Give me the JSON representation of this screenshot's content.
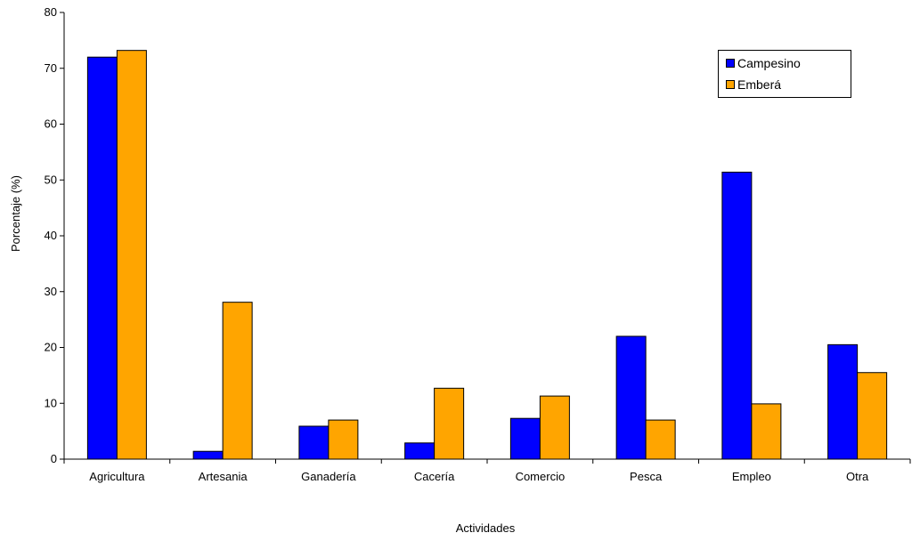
{
  "colors": {
    "campesino": "#0000ff",
    "embera": "#ffa500",
    "axis": "#000000"
  },
  "chart_data": {
    "type": "bar",
    "title": "",
    "xlabel": "Actividades",
    "ylabel": "Porcentaje (%)",
    "ylim": [
      0,
      80
    ],
    "yticks": [
      "0",
      "10",
      "20",
      "30",
      "40",
      "50",
      "60",
      "70",
      "80"
    ],
    "categories": [
      "Agricultura",
      "Artesania",
      "Ganadería",
      "Cacería",
      "Comercio",
      "Pesca",
      "Empleo",
      "Otra"
    ],
    "series": [
      {
        "name": "Campesino",
        "values": [
          72.0,
          1.4,
          5.9,
          2.9,
          7.3,
          22.0,
          51.4,
          20.5
        ]
      },
      {
        "name": "Emberá",
        "values": [
          73.2,
          28.1,
          7.0,
          12.7,
          11.3,
          7.0,
          9.9,
          15.5
        ]
      }
    ],
    "legend": "top-right",
    "grid": false
  }
}
